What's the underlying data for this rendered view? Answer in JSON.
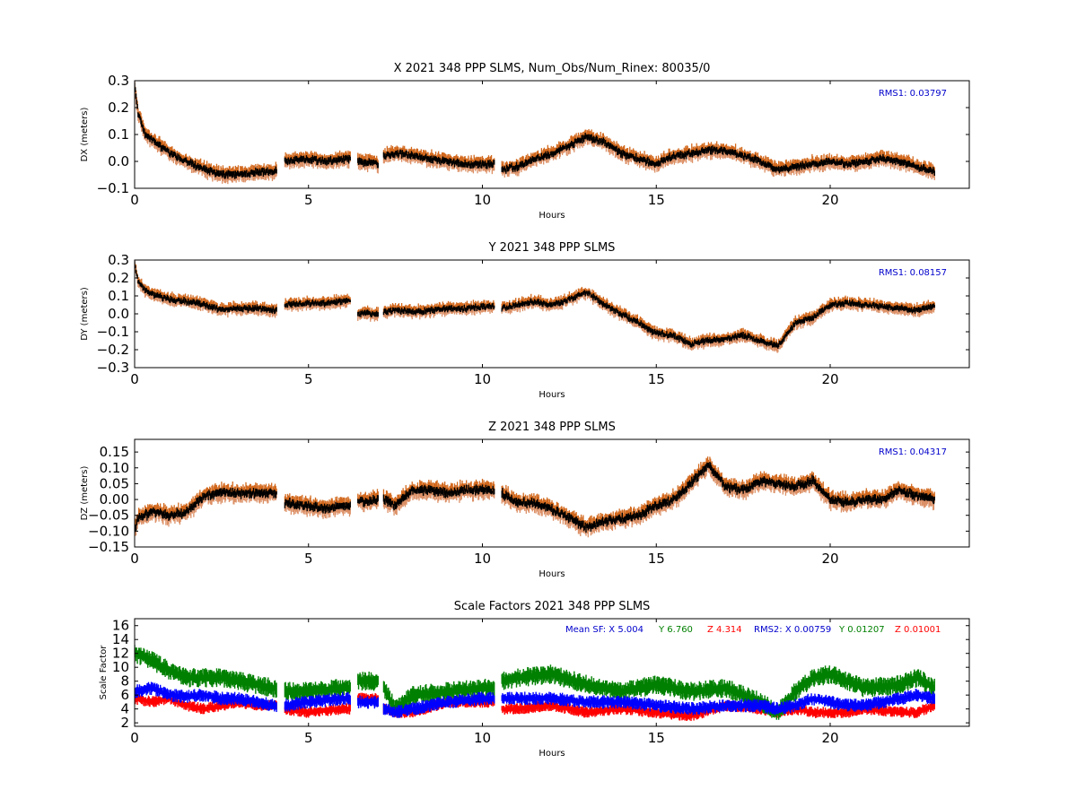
{
  "colors": {
    "upper_band": "#d2691e",
    "lower_band": "#dc9066",
    "center_line": "#000000",
    "sf_x": "#0000ff",
    "sf_y": "#008000",
    "sf_z": "#ff0000",
    "rms_text": "#0000cc"
  },
  "chart_data": [
    {
      "type": "line",
      "title": "X 2021 348 PPP  SLMS, Num_Obs/Num_Rinex: 80035/0",
      "xlabel": "Hours",
      "ylabel": "DX (meters)",
      "xlim": [
        0,
        24
      ],
      "ylim": [
        -0.1,
        0.3
      ],
      "xticks": [
        0,
        5,
        10,
        15,
        20
      ],
      "yticks": [
        -0.1,
        0.0,
        0.1,
        0.2,
        0.3
      ],
      "ytick_labels": [
        "−0.1",
        "0.0",
        "0.1",
        "0.2",
        "0.3"
      ],
      "annotation": "RMS1:  0.03797",
      "band_half_width": 0.028,
      "gaps": [
        [
          4.1,
          4.3
        ],
        [
          6.2,
          6.4
        ],
        [
          7.0,
          7.15
        ],
        [
          10.35,
          10.55
        ]
      ],
      "series": [
        {
          "x": [
            0,
            0.1,
            0.3,
            0.6,
            1.0,
            1.5,
            2.0,
            2.5,
            3.0,
            3.5,
            4.0,
            4.1,
            4.3,
            5.0,
            5.5,
            6.2,
            6.4,
            7.0,
            7.15,
            7.5,
            8.0,
            8.5,
            9.0,
            9.5,
            10.0,
            10.35,
            10.55,
            11.0,
            11.5,
            12.0,
            12.5,
            13.0,
            13.5,
            14.0,
            14.5,
            15.0,
            15.5,
            16.0,
            16.5,
            17.0,
            17.5,
            18.0,
            18.5,
            19.0,
            19.5,
            20.0,
            20.5,
            21.0,
            21.5,
            22.0,
            22.5,
            23.0
          ],
          "values": [
            0.28,
            0.18,
            0.1,
            0.07,
            0.03,
            0.0,
            -0.03,
            -0.05,
            -0.05,
            -0.04,
            -0.04,
            -0.03,
            0.0,
            0.01,
            0.0,
            0.01,
            0.0,
            -0.01,
            0.02,
            0.03,
            0.02,
            0.01,
            0.0,
            -0.01,
            -0.01,
            -0.01,
            -0.03,
            -0.02,
            0.01,
            0.03,
            0.06,
            0.09,
            0.07,
            0.03,
            0.01,
            -0.01,
            0.02,
            0.03,
            0.04,
            0.04,
            0.02,
            0.0,
            -0.03,
            -0.02,
            -0.01,
            0.0,
            -0.01,
            0.0,
            0.01,
            0.0,
            -0.02,
            -0.04
          ]
        }
      ]
    },
    {
      "type": "line",
      "title": "Y 2021 348 PPP  SLMS",
      "xlabel": "Hours",
      "ylabel": "DY (meters)",
      "xlim": [
        0,
        24
      ],
      "ylim": [
        -0.3,
        0.3
      ],
      "xticks": [
        0,
        5,
        10,
        15,
        20
      ],
      "yticks": [
        -0.3,
        -0.2,
        -0.1,
        0.0,
        0.1,
        0.2,
        0.3
      ],
      "ytick_labels": [
        "−0.3",
        "−0.2",
        "−0.1",
        "0.0",
        "0.1",
        "0.2",
        "0.3"
      ],
      "annotation": "RMS1:  0.08157",
      "band_half_width": 0.035,
      "gaps": [
        [
          4.1,
          4.3
        ],
        [
          6.2,
          6.4
        ],
        [
          7.0,
          7.15
        ],
        [
          10.35,
          10.55
        ]
      ],
      "series": [
        {
          "x": [
            0,
            0.1,
            0.3,
            0.6,
            1.0,
            1.5,
            2.0,
            2.5,
            3.0,
            3.5,
            4.0,
            4.1,
            4.3,
            5.0,
            5.5,
            6.2,
            6.4,
            7.0,
            7.15,
            7.5,
            8.0,
            8.5,
            9.0,
            9.5,
            10.0,
            10.35,
            10.55,
            11.0,
            11.5,
            12.0,
            12.5,
            13.0,
            13.5,
            14.0,
            14.5,
            15.0,
            15.5,
            16.0,
            16.5,
            17.0,
            17.5,
            18.0,
            18.5,
            19.0,
            19.5,
            20.0,
            20.5,
            21.0,
            21.5,
            22.0,
            22.5,
            23.0
          ],
          "values": [
            0.28,
            0.18,
            0.13,
            0.1,
            0.08,
            0.07,
            0.05,
            0.02,
            0.03,
            0.03,
            0.02,
            0.02,
            0.05,
            0.06,
            0.06,
            0.07,
            0.0,
            0.0,
            0.01,
            0.02,
            0.01,
            0.02,
            0.03,
            0.03,
            0.04,
            0.04,
            0.03,
            0.05,
            0.07,
            0.05,
            0.08,
            0.12,
            0.05,
            0.0,
            -0.05,
            -0.11,
            -0.12,
            -0.17,
            -0.15,
            -0.14,
            -0.12,
            -0.15,
            -0.18,
            -0.05,
            -0.02,
            0.05,
            0.06,
            0.05,
            0.04,
            0.03,
            0.02,
            0.04
          ]
        }
      ]
    },
    {
      "type": "line",
      "title": "Z 2021 348 PPP  SLMS",
      "xlabel": "Hours",
      "ylabel": "DZ (meters)",
      "xlim": [
        0,
        24
      ],
      "ylim": [
        -0.15,
        0.19
      ],
      "xticks": [
        0,
        5,
        10,
        15,
        20
      ],
      "yticks": [
        -0.15,
        -0.1,
        -0.05,
        0.0,
        0.05,
        0.1,
        0.15
      ],
      "ytick_labels": [
        "−0.15",
        "−0.10",
        "−0.05",
        "0.00",
        "0.05",
        "0.10",
        "0.15"
      ],
      "annotation": "RMS1:  0.04317",
      "band_half_width": 0.028,
      "gaps": [
        [
          4.1,
          4.3
        ],
        [
          6.2,
          6.4
        ],
        [
          7.0,
          7.15
        ],
        [
          10.35,
          10.55
        ]
      ],
      "series": [
        {
          "x": [
            0,
            0.1,
            0.3,
            0.6,
            1.0,
            1.5,
            2.0,
            2.5,
            3.0,
            3.5,
            4.0,
            4.1,
            4.3,
            5.0,
            5.5,
            6.2,
            6.4,
            7.0,
            7.15,
            7.5,
            8.0,
            8.5,
            9.0,
            9.5,
            10.0,
            10.35,
            10.55,
            11.0,
            11.5,
            12.0,
            12.5,
            13.0,
            13.5,
            14.0,
            14.5,
            15.0,
            15.5,
            16.0,
            16.5,
            17.0,
            17.5,
            18.0,
            18.5,
            19.0,
            19.5,
            20.0,
            20.5,
            21.0,
            21.5,
            22.0,
            22.5,
            23.0
          ],
          "values": [
            -0.1,
            -0.06,
            -0.05,
            -0.04,
            -0.05,
            -0.04,
            0.01,
            0.02,
            0.02,
            0.02,
            0.02,
            0.02,
            -0.01,
            -0.02,
            -0.03,
            -0.02,
            -0.01,
            0.0,
            0.0,
            -0.02,
            0.03,
            0.03,
            0.02,
            0.03,
            0.03,
            0.03,
            0.02,
            -0.01,
            -0.01,
            -0.03,
            -0.06,
            -0.09,
            -0.07,
            -0.06,
            -0.05,
            -0.02,
            0.0,
            0.05,
            0.11,
            0.04,
            0.03,
            0.06,
            0.05,
            0.04,
            0.06,
            0.0,
            -0.01,
            0.0,
            0.0,
            0.03,
            0.01,
            0.0
          ]
        }
      ]
    },
    {
      "type": "line",
      "title": "Scale Factors 2021 348 PPP  SLMS",
      "xlabel": "Hours",
      "ylabel": "Scale Factor",
      "xlim": [
        0,
        24
      ],
      "ylim": [
        1.5,
        17
      ],
      "xticks": [
        0,
        5,
        10,
        15,
        20
      ],
      "yticks": [
        2,
        4,
        6,
        8,
        10,
        12,
        14,
        16
      ],
      "ytick_labels": [
        "2",
        "4",
        "6",
        "8",
        "10",
        "12",
        "14",
        "16"
      ],
      "gaps": [
        [
          4.1,
          4.3
        ],
        [
          6.2,
          6.4
        ],
        [
          7.0,
          7.15
        ],
        [
          10.35,
          10.55
        ]
      ],
      "annotation_parts": [
        {
          "text": "Mean SF: X   5.004",
          "color": "#0000cc"
        },
        {
          "text": "Y   6.760",
          "color": "#008000"
        },
        {
          "text": "Z   4.314",
          "color": "#ff0000"
        },
        {
          "text": "RMS2: X  0.00759",
          "color": "#0000cc"
        },
        {
          "text": "Y  0.01207",
          "color": "#008000"
        },
        {
          "text": "Z  0.01001",
          "color": "#ff0000"
        }
      ],
      "series": [
        {
          "name": "X",
          "color": "#0000ff",
          "band_half_width": 0.7,
          "x": [
            0,
            0.5,
            1.0,
            1.5,
            2.0,
            2.5,
            3.0,
            3.5,
            4.0,
            4.1,
            4.3,
            5.0,
            6.0,
            6.2,
            6.4,
            7.0,
            7.15,
            7.5,
            8.0,
            9.0,
            10.0,
            10.35,
            10.55,
            11.0,
            12.0,
            13.0,
            14.0,
            15.0,
            16.0,
            17.0,
            18.0,
            18.5,
            19.0,
            19.5,
            20.0,
            20.5,
            21.0,
            22.0,
            22.5,
            23.0
          ],
          "values": [
            6.5,
            7.0,
            6.0,
            5.8,
            6.0,
            5.5,
            5.5,
            5.0,
            4.5,
            4.5,
            4.5,
            5.0,
            5.5,
            5.5,
            5.0,
            5.0,
            4.0,
            3.5,
            4.0,
            5.0,
            5.5,
            5.5,
            5.5,
            5.5,
            5.5,
            5.0,
            5.0,
            4.5,
            4.0,
            4.5,
            4.5,
            4.0,
            4.5,
            5.5,
            5.0,
            4.5,
            4.5,
            5.5,
            6.0,
            5.5
          ]
        },
        {
          "name": "Y",
          "color": "#008000",
          "band_half_width": 1.0,
          "x": [
            0,
            0.5,
            1.0,
            1.5,
            2.0,
            2.5,
            3.0,
            3.5,
            4.0,
            4.1,
            4.3,
            5.0,
            6.0,
            6.2,
            6.4,
            7.0,
            7.15,
            7.5,
            8.0,
            9.0,
            10.0,
            10.35,
            10.55,
            11.0,
            12.0,
            13.0,
            14.0,
            15.0,
            16.0,
            17.0,
            18.0,
            18.5,
            19.0,
            19.5,
            20.0,
            20.5,
            21.0,
            22.0,
            22.5,
            23.0
          ],
          "values": [
            12.0,
            11.0,
            9.5,
            8.5,
            8.5,
            8.5,
            8.0,
            7.5,
            7.0,
            7.0,
            6.5,
            6.5,
            7.0,
            7.0,
            8.0,
            8.0,
            7.0,
            4.0,
            6.0,
            6.5,
            7.0,
            7.0,
            8.0,
            8.5,
            9.0,
            7.5,
            6.5,
            7.5,
            6.5,
            7.0,
            5.0,
            3.5,
            6.5,
            8.5,
            9.0,
            8.0,
            7.0,
            7.5,
            8.5,
            7.0
          ]
        },
        {
          "name": "Z",
          "color": "#ff0000",
          "band_half_width": 0.6,
          "x": [
            0,
            0.5,
            1.0,
            1.5,
            2.0,
            2.5,
            3.0,
            3.5,
            4.0,
            4.1,
            4.3,
            5.0,
            6.0,
            6.2,
            6.4,
            7.0,
            7.15,
            7.5,
            8.0,
            9.0,
            10.0,
            10.35,
            10.55,
            11.0,
            12.0,
            13.0,
            14.0,
            15.0,
            16.0,
            17.0,
            18.0,
            18.5,
            19.0,
            19.5,
            20.0,
            20.5,
            21.0,
            22.0,
            22.5,
            23.0
          ],
          "values": [
            5.5,
            5.0,
            5.5,
            4.5,
            4.0,
            4.5,
            5.0,
            4.5,
            4.5,
            4.5,
            4.0,
            3.5,
            4.0,
            4.0,
            5.5,
            5.5,
            4.0,
            3.5,
            3.5,
            5.0,
            5.0,
            5.0,
            4.0,
            4.0,
            4.5,
            3.5,
            4.0,
            3.5,
            3.0,
            4.5,
            4.0,
            3.5,
            4.0,
            3.5,
            3.5,
            3.5,
            4.0,
            3.5,
            3.5,
            4.5
          ]
        }
      ]
    }
  ]
}
